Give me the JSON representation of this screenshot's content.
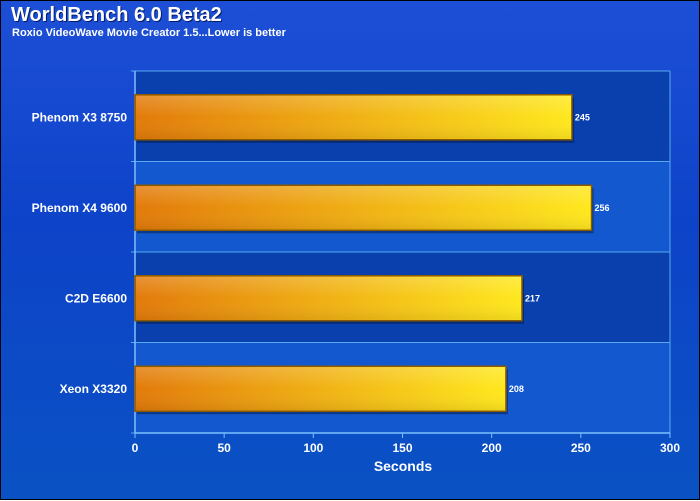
{
  "chart_data": {
    "type": "bar",
    "orientation": "horizontal",
    "title": "WorldBench 6.0 Beta2",
    "subtitle": "Roxio VideoWave Movie Creator 1.5...Lower is better",
    "categories": [
      "Phenom X3 8750",
      "Phenom X4 9600",
      "C2D E6600",
      "Xeon X3320"
    ],
    "values": [
      245,
      256,
      217,
      208
    ],
    "value_labels": [
      "245",
      "256",
      "217",
      "208"
    ],
    "xlabel": "Seconds",
    "ylabel": "",
    "xlim": [
      0,
      300
    ],
    "xticks": [
      "0",
      "50",
      "100",
      "150",
      "200",
      "250",
      "300"
    ],
    "grid": false,
    "legend": "none",
    "colors": {
      "bar_start": "#e27a0a",
      "bar_end": "#ffe81e",
      "bar_border": "#8a5a00",
      "plot_band_dark": "#0a3fae",
      "plot_band_light": "#1358cf",
      "divider": "#58a9f2"
    }
  }
}
